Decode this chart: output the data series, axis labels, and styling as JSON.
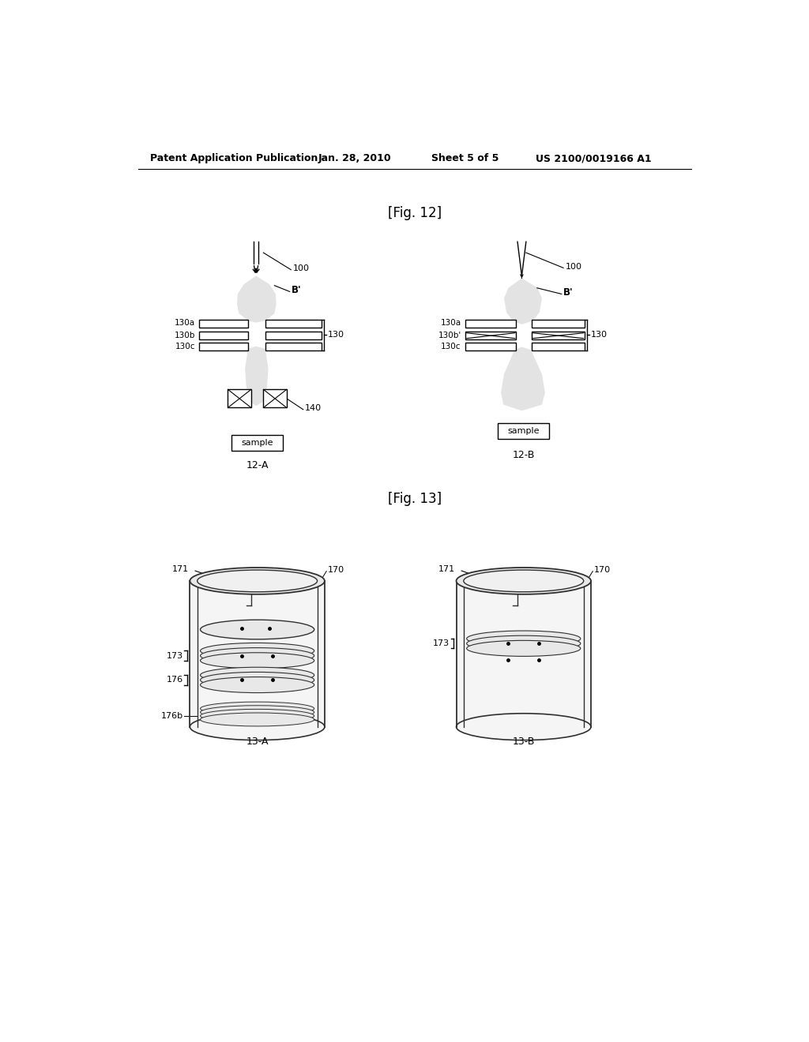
{
  "bg_color": "#ffffff",
  "header_text": "Patent Application Publication",
  "header_date": "Jan. 28, 2010",
  "header_sheet": "Sheet 5 of 5",
  "header_patent": "US 2100/0019166 A1",
  "fig12_label": "[Fig. 12]",
  "fig13_label": "[Fig. 13]",
  "fig12a_label": "12-A",
  "fig12b_label": "12-B",
  "fig13a_label": "13-A",
  "fig13b_label": "13-B",
  "header_patent_correct": "US 2100/0019166 A1"
}
